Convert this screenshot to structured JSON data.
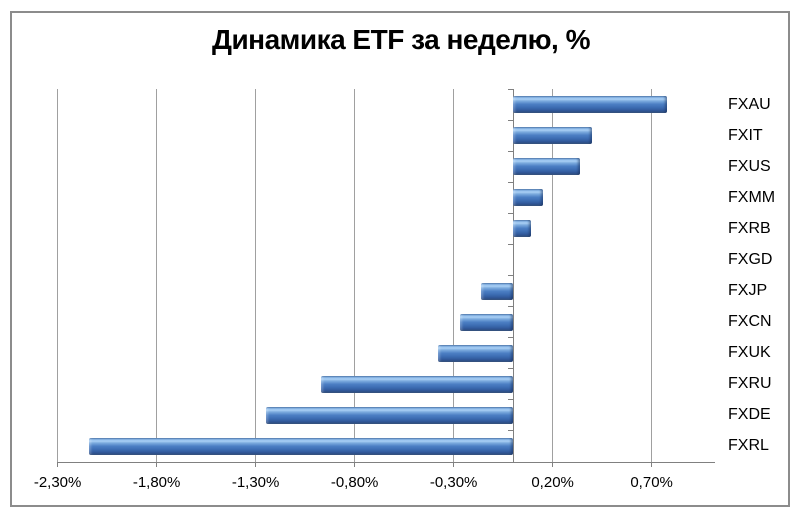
{
  "chart_data": {
    "type": "bar",
    "orientation": "horizontal",
    "title": "Динамика ETF за неделю, %",
    "categories": [
      "FXAU",
      "FXIT",
      "FXUS",
      "FXMM",
      "FXRB",
      "FXGD",
      "FXJP",
      "FXCN",
      "FXUK",
      "FXRU",
      "FXDE",
      "FXRL"
    ],
    "values": [
      0.78,
      0.4,
      0.34,
      0.15,
      0.09,
      0.0,
      -0.16,
      -0.27,
      -0.38,
      -0.97,
      -1.25,
      -2.14
    ],
    "xlabel": "",
    "ylabel": "",
    "x_tick_values": [
      -2.3,
      -1.8,
      -1.3,
      -0.8,
      -0.3,
      0.2,
      0.7
    ],
    "x_tick_labels": [
      "-2,30%",
      "-1,80%",
      "-1,30%",
      "-0,80%",
      "-0,30%",
      "0,20%",
      "0,70%"
    ],
    "xlim": [
      -2.303,
      1.02
    ],
    "grid": true,
    "legend": false,
    "bar_color": "#4f81bd"
  },
  "colors": {
    "gridline": "#a0a0a0",
    "axis": "#808080",
    "frame_border": "#8c8c8c",
    "title_text": "#000000",
    "label_text": "#000000",
    "background": "#ffffff"
  }
}
